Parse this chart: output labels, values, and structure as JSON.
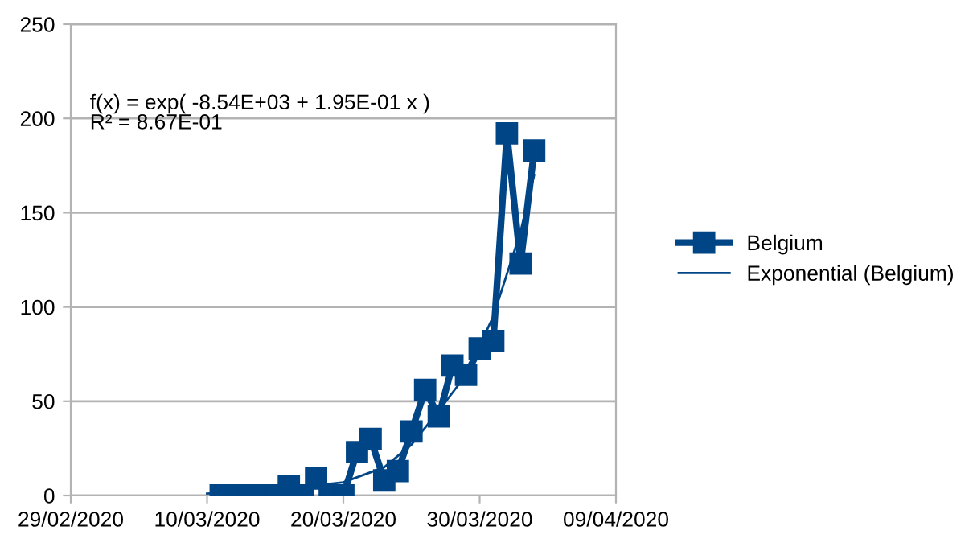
{
  "chart_data": {
    "type": "line",
    "x": [
      "2020-03-11",
      "2020-03-12",
      "2020-03-13",
      "2020-03-14",
      "2020-03-15",
      "2020-03-16",
      "2020-03-17",
      "2020-03-18",
      "2020-03-19",
      "2020-03-20",
      "2020-03-21",
      "2020-03-22",
      "2020-03-23",
      "2020-03-24",
      "2020-03-25",
      "2020-03-26",
      "2020-03-27",
      "2020-03-28",
      "2020-03-29",
      "2020-03-30",
      "2020-03-31",
      "2020-04-01",
      "2020-04-02",
      "2020-04-03"
    ],
    "series": [
      {
        "name": "Belgium",
        "color": "#004586",
        "marker": "square",
        "values": [
          0,
          0,
          0,
          0,
          0,
          5,
          0,
          9,
          0,
          0,
          23,
          30,
          8,
          13,
          34,
          56,
          42,
          69,
          64,
          78,
          82,
          192,
          123,
          183
        ]
      },
      {
        "name": "Exponential (Belgium)",
        "color": "#004586",
        "marker": "none",
        "x": [
          "2020-03-10",
          "2020-03-15",
          "2020-03-20",
          "2020-03-23",
          "2020-03-25",
          "2020-03-27",
          "2020-03-29",
          "2020-03-31",
          "2020-04-02",
          "2020-04-03"
        ],
        "values": [
          1,
          3,
          7,
          15,
          27,
          45,
          64,
          95,
          140,
          170
        ]
      }
    ],
    "xlim": [
      "2020-02-29",
      "2020-04-09"
    ],
    "xticks": [
      {
        "value": "2020-02-29",
        "label": "29/02/2020"
      },
      {
        "value": "2020-03-10",
        "label": "10/03/2020"
      },
      {
        "value": "2020-03-20",
        "label": "20/03/2020"
      },
      {
        "value": "2020-03-30",
        "label": "30/03/2020"
      },
      {
        "value": "2020-04-09",
        "label": "09/04/2020"
      }
    ],
    "ylim": [
      0,
      250
    ],
    "yticks": [
      0,
      50,
      100,
      150,
      200,
      250
    ],
    "grid": "y",
    "legend": "right",
    "annotations": [
      "f(x) = exp( -8.54E+03 + 1.95E-01 x )\nR² = 8.67E-01"
    ]
  }
}
